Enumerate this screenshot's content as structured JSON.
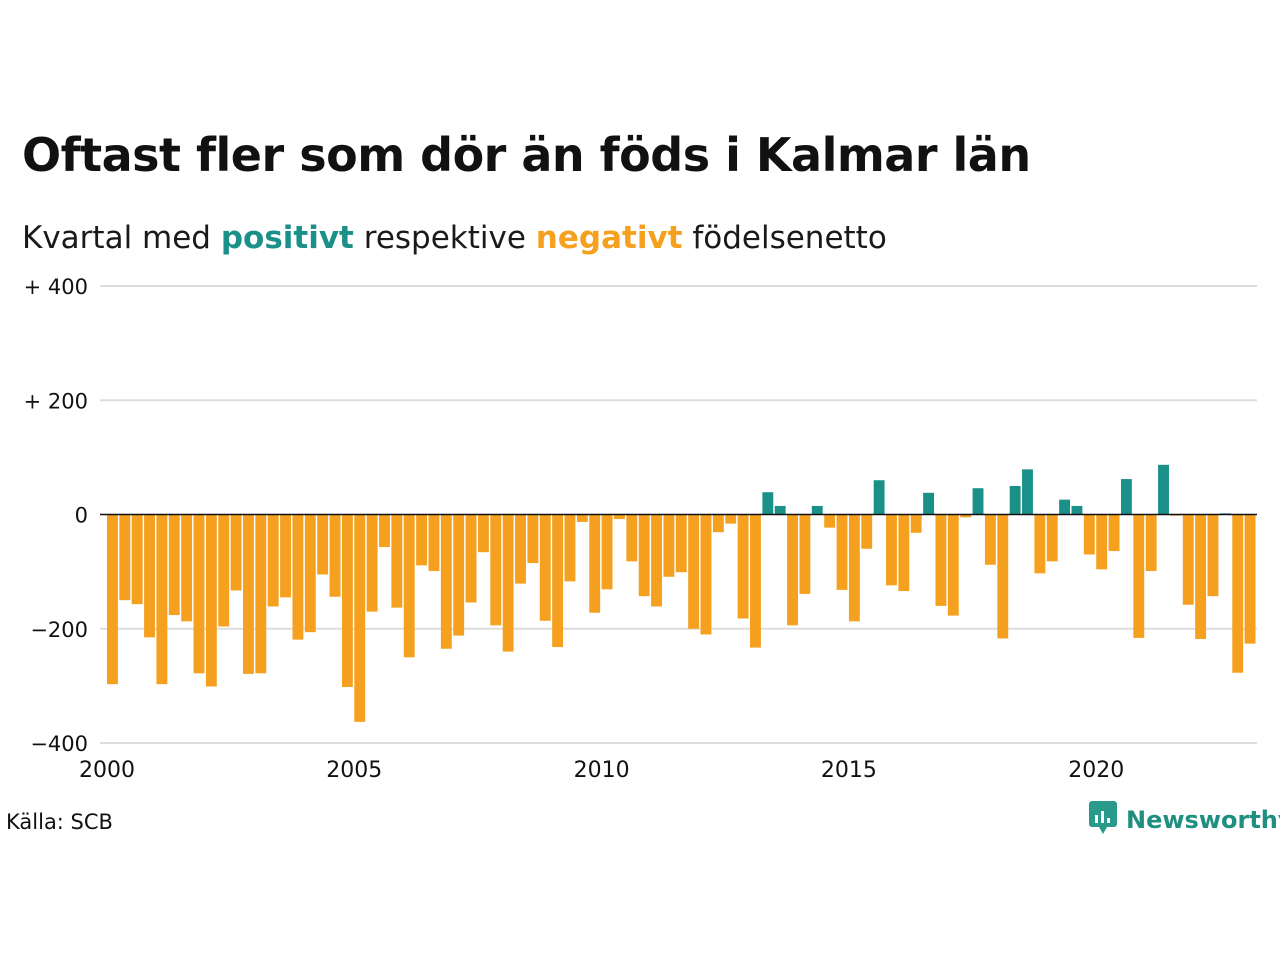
{
  "title": "Oftast fler som dör än föds i Kalmar län",
  "subtitle": {
    "before": "Kvartal med",
    "positive": "positivt",
    "middle": "respektive",
    "negative": "negativt",
    "after": "födelsenetto"
  },
  "source": "Källa: SCB",
  "brand": {
    "name": "Newsworthy",
    "icon": "newsworthy-logo-icon"
  },
  "colors": {
    "positive": "#1a9088",
    "negative": "#f5a01e",
    "grid": "#dddddd",
    "axis": "#111111"
  },
  "chart_data": {
    "type": "bar",
    "x_unit": "quarter",
    "start": "2000 Q1",
    "ylim": [
      -400,
      400
    ],
    "y_ticks": [
      {
        "value": 400,
        "label": "+ 400"
      },
      {
        "value": 200,
        "label": "+ 200"
      },
      {
        "value": 0,
        "label": "0"
      },
      {
        "value": -200,
        "label": "−200"
      },
      {
        "value": -400,
        "label": "−400"
      }
    ],
    "x_ticks": [
      {
        "label": "2000",
        "quarter_index": 0
      },
      {
        "label": "2005",
        "quarter_index": 20
      },
      {
        "label": "2010",
        "quarter_index": 40
      },
      {
        "label": "2015",
        "quarter_index": 60
      },
      {
        "label": "2020",
        "quarter_index": 80
      }
    ],
    "grid": true,
    "values": [
      -297,
      -150,
      -157,
      -215,
      -297,
      -176,
      -187,
      -278,
      -301,
      -196,
      -133,
      -279,
      -278,
      -161,
      -145,
      -219,
      -206,
      -105,
      -144,
      -302,
      -363,
      -170,
      -57,
      -163,
      -250,
      -89,
      -99,
      -235,
      -212,
      -154,
      -66,
      -194,
      -240,
      -121,
      -85,
      -186,
      -232,
      -117,
      -13,
      -172,
      -131,
      -8,
      -82,
      -143,
      -161,
      -109,
      -101,
      -200,
      -210,
      -31,
      -16,
      -182,
      -233,
      39,
      15,
      -194,
      -139,
      15,
      -23,
      -132,
      -187,
      -60,
      60,
      -124,
      -134,
      -32,
      38,
      -160,
      -177,
      -5,
      46,
      -88,
      -217,
      50,
      79,
      -103,
      -82,
      26,
      15,
      -70,
      -96,
      -64,
      62,
      -216,
      -99,
      87,
      -2,
      -158,
      -218,
      -143,
      2,
      -277,
      -226
    ]
  }
}
